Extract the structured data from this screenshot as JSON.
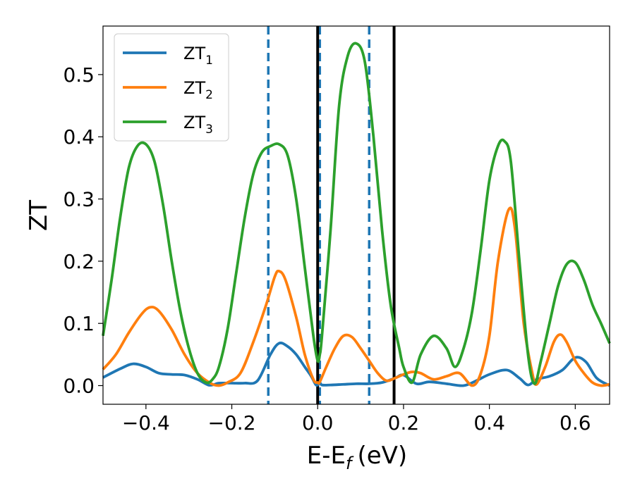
{
  "chart_data": {
    "type": "line",
    "xlabel": "E-E",
    "xlabel_sub": "f",
    "xlabel_unit": "(eV)",
    "ylabel": "ZT",
    "xlim": [
      -0.5,
      0.68
    ],
    "ylim": [
      -0.03,
      0.578
    ],
    "xticks": [
      -0.4,
      -0.2,
      0.0,
      0.2,
      0.4,
      0.6
    ],
    "xtick_labels": [
      "−0.4",
      "−0.2",
      "0.0",
      "0.2",
      "0.4",
      "0.6"
    ],
    "yticks": [
      0.0,
      0.1,
      0.2,
      0.3,
      0.4,
      0.5
    ],
    "ytick_labels": [
      "0.0",
      "0.1",
      "0.2",
      "0.3",
      "0.4",
      "0.5"
    ],
    "grid": false,
    "legend_position": "top-left",
    "vlines": [
      {
        "x": -0.115,
        "style": "dashed",
        "color": "#1f77b4"
      },
      {
        "x": 0.005,
        "style": "dashed",
        "color": "#1f77b4"
      },
      {
        "x": 0.12,
        "style": "dashed",
        "color": "#1f77b4"
      },
      {
        "x": 0.0,
        "style": "solid",
        "color": "#000000"
      },
      {
        "x": 0.178,
        "style": "solid",
        "color": "#000000"
      }
    ],
    "series": [
      {
        "name": "ZT",
        "name_sub": "1",
        "color": "#1f77b4",
        "x": [
          -0.5,
          -0.46,
          -0.43,
          -0.4,
          -0.37,
          -0.34,
          -0.31,
          -0.28,
          -0.255,
          -0.24,
          -0.23,
          -0.2,
          -0.17,
          -0.14,
          -0.11,
          -0.09,
          -0.07,
          -0.05,
          -0.03,
          -0.015,
          -0.005,
          0.0,
          0.005,
          0.01,
          0.03,
          0.06,
          0.09,
          0.12,
          0.15,
          0.18,
          0.2,
          0.23,
          0.26,
          0.3,
          0.34,
          0.37,
          0.4,
          0.44,
          0.47,
          0.49,
          0.51,
          0.54,
          0.57,
          0.6,
          0.625,
          0.65,
          0.68
        ],
        "values": [
          0.013,
          0.027,
          0.035,
          0.03,
          0.02,
          0.018,
          0.017,
          0.01,
          0.001,
          0.002,
          0.004,
          0.004,
          0.004,
          0.008,
          0.05,
          0.068,
          0.063,
          0.05,
          0.03,
          0.015,
          0.002,
          0.001,
          0.005,
          0.001,
          0.001,
          0.002,
          0.003,
          0.003,
          0.005,
          0.012,
          0.017,
          0.003,
          0.006,
          0.003,
          0.0,
          0.008,
          0.018,
          0.025,
          0.012,
          0.001,
          0.01,
          0.015,
          0.025,
          0.045,
          0.038,
          0.012,
          0.0
        ]
      },
      {
        "name": "ZT",
        "name_sub": "2",
        "color": "#ff7f0e",
        "x": [
          -0.5,
          -0.47,
          -0.44,
          -0.41,
          -0.39,
          -0.37,
          -0.34,
          -0.31,
          -0.28,
          -0.25,
          -0.23,
          -0.21,
          -0.18,
          -0.15,
          -0.12,
          -0.1,
          -0.09,
          -0.075,
          -0.05,
          -0.03,
          -0.01,
          0.0,
          0.005,
          0.02,
          0.04,
          0.06,
          0.08,
          0.1,
          0.12,
          0.14,
          0.16,
          0.18,
          0.2,
          0.22,
          0.24,
          0.27,
          0.3,
          0.33,
          0.36,
          0.38,
          0.4,
          0.42,
          0.445,
          0.46,
          0.48,
          0.5,
          0.51,
          0.53,
          0.55,
          0.565,
          0.58,
          0.6,
          0.62,
          0.64,
          0.66,
          0.68
        ],
        "values": [
          0.026,
          0.05,
          0.085,
          0.115,
          0.126,
          0.12,
          0.09,
          0.05,
          0.02,
          0.004,
          0.0,
          0.005,
          0.02,
          0.07,
          0.13,
          0.175,
          0.184,
          0.17,
          0.11,
          0.05,
          0.01,
          0.005,
          0.006,
          0.03,
          0.06,
          0.08,
          0.078,
          0.06,
          0.04,
          0.02,
          0.008,
          0.012,
          0.018,
          0.022,
          0.02,
          0.01,
          0.015,
          0.02,
          0.0,
          0.02,
          0.08,
          0.2,
          0.283,
          0.25,
          0.1,
          0.02,
          0.002,
          0.03,
          0.07,
          0.082,
          0.07,
          0.04,
          0.02,
          0.005,
          0.0,
          0.002
        ]
      },
      {
        "name": "ZT",
        "name_sub": "3",
        "color": "#2ca02c",
        "x": [
          -0.5,
          -0.48,
          -0.46,
          -0.44,
          -0.42,
          -0.4,
          -0.38,
          -0.36,
          -0.34,
          -0.32,
          -0.3,
          -0.28,
          -0.26,
          -0.245,
          -0.23,
          -0.21,
          -0.19,
          -0.17,
          -0.15,
          -0.13,
          -0.11,
          -0.09,
          -0.07,
          -0.05,
          -0.03,
          -0.01,
          0.0,
          0.005,
          0.01,
          0.03,
          0.05,
          0.07,
          0.09,
          0.11,
          0.13,
          0.15,
          0.17,
          0.19,
          0.2,
          0.22,
          0.24,
          0.27,
          0.3,
          0.32,
          0.34,
          0.36,
          0.38,
          0.4,
          0.42,
          0.435,
          0.45,
          0.47,
          0.49,
          0.505,
          0.52,
          0.54,
          0.56,
          0.58,
          0.6,
          0.62,
          0.64,
          0.66,
          0.68
        ],
        "values": [
          0.08,
          0.17,
          0.27,
          0.35,
          0.385,
          0.388,
          0.36,
          0.29,
          0.2,
          0.12,
          0.06,
          0.02,
          0.005,
          0.01,
          0.03,
          0.09,
          0.18,
          0.27,
          0.34,
          0.375,
          0.385,
          0.388,
          0.37,
          0.3,
          0.19,
          0.08,
          0.04,
          0.05,
          0.08,
          0.25,
          0.45,
          0.53,
          0.55,
          0.52,
          0.4,
          0.25,
          0.13,
          0.06,
          0.03,
          0.005,
          0.05,
          0.08,
          0.06,
          0.03,
          0.06,
          0.12,
          0.22,
          0.33,
          0.385,
          0.393,
          0.36,
          0.2,
          0.05,
          0.003,
          0.04,
          0.1,
          0.16,
          0.195,
          0.198,
          0.17,
          0.13,
          0.1,
          0.068
        ]
      }
    ]
  }
}
